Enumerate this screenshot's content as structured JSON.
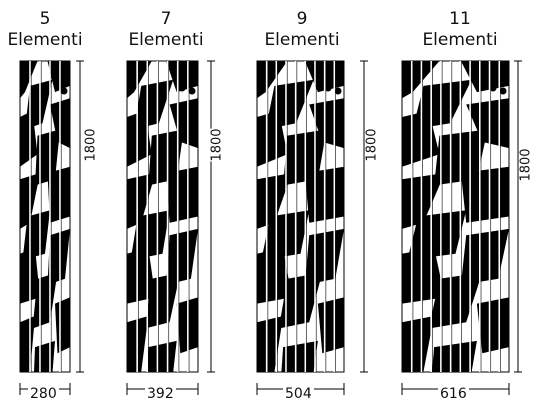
{
  "colors": {
    "ink": "#000000",
    "paper": "#ffffff"
  },
  "panels": [
    {
      "count": "5",
      "label": "Elementi",
      "width": "280",
      "height": "1800",
      "elements": 5
    },
    {
      "count": "7",
      "label": "Elementi",
      "width": "392",
      "height": "1800",
      "elements": 7
    },
    {
      "count": "9",
      "label": "Elementi",
      "width": "504",
      "height": "1800",
      "elements": 9
    },
    {
      "count": "11",
      "label": "Elementi",
      "width": "616",
      "height": "1800",
      "elements": 11
    }
  ]
}
